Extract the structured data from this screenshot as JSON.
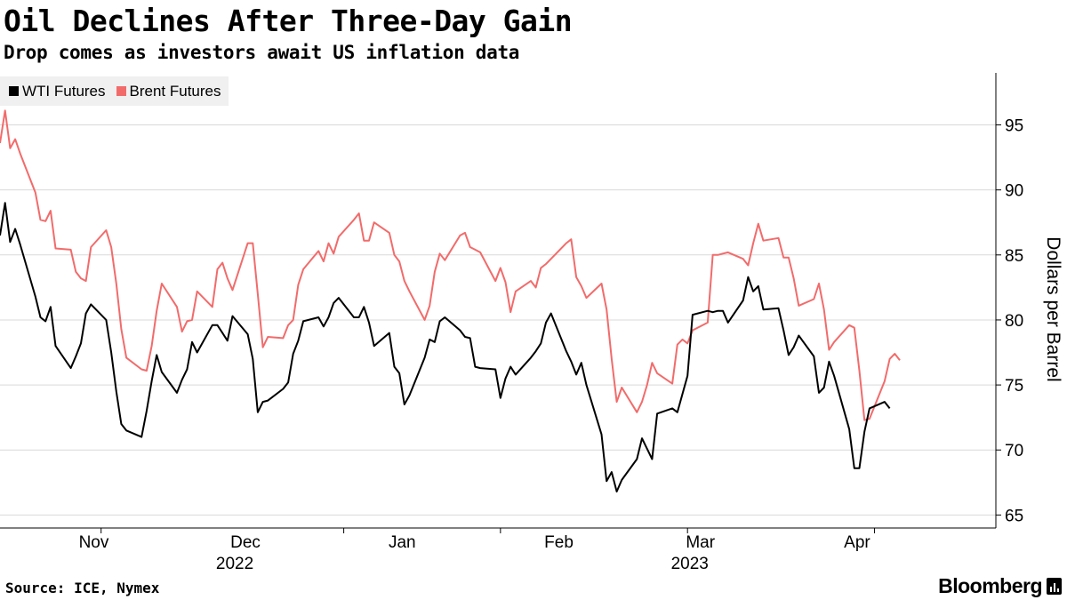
{
  "header": {
    "title": "Oil Declines After Three-Day Gain",
    "subtitle": "Drop comes as investors await US inflation data"
  },
  "footer": {
    "source": "Source: ICE, Nymex",
    "brand": "Bloomberg"
  },
  "colors": {
    "wti": "#000000",
    "brent": "#f26b6b",
    "grid": "#d9d9d9",
    "axis": "#000000"
  },
  "chart_data": {
    "type": "line",
    "title": "Oil Declines After Three-Day Gain",
    "subtitle": "Drop comes as investors await US inflation data",
    "ylabel": "Dollars per Barrel",
    "xlabel": "",
    "ylim": [
      64,
      99
    ],
    "yticks": [
      65,
      70,
      75,
      80,
      85,
      90,
      95
    ],
    "y_axis_side": "right",
    "grid": "horizontal",
    "legend": "top-left",
    "x_start": "2022-10-24",
    "x_end": "2023-05-09",
    "x_ticks": [
      {
        "date": "2022-11-01",
        "label": "Nov",
        "sublabel": ""
      },
      {
        "date": "2022-12-01",
        "label": "Dec",
        "sublabel": "2022"
      },
      {
        "date": "2023-01-01",
        "label": "Jan",
        "sublabel": ""
      },
      {
        "date": "2023-02-01",
        "label": "Feb",
        "sublabel": ""
      },
      {
        "date": "2023-03-01",
        "label": "Mar",
        "sublabel": "2023"
      },
      {
        "date": "2023-04-01",
        "label": "Apr",
        "sublabel": ""
      }
    ],
    "year_dividers": [
      "2022-11-13",
      "2022-12-31",
      "2023-01-31",
      "2023-03-09",
      "2023-04-15"
    ],
    "series": [
      {
        "name": "WTI Futures",
        "color": "#000000",
        "points": [
          [
            "2022-10-24",
            86.5
          ],
          [
            "2022-10-25",
            89.0
          ],
          [
            "2022-10-26",
            86.0
          ],
          [
            "2022-10-27",
            87.0
          ],
          [
            "2022-10-28",
            85.8
          ],
          [
            "2022-10-31",
            81.8
          ],
          [
            "2022-11-01",
            80.2
          ],
          [
            "2022-11-02",
            79.9
          ],
          [
            "2022-11-03",
            81.0
          ],
          [
            "2022-11-04",
            78.0
          ],
          [
            "2022-11-07",
            76.3
          ],
          [
            "2022-11-08",
            77.2
          ],
          [
            "2022-11-09",
            78.2
          ],
          [
            "2022-11-10",
            80.5
          ],
          [
            "2022-11-11",
            81.2
          ],
          [
            "2022-11-14",
            80.0
          ],
          [
            "2022-11-15",
            77.5
          ],
          [
            "2022-11-16",
            74.5
          ],
          [
            "2022-11-17",
            72.0
          ],
          [
            "2022-11-18",
            71.5
          ],
          [
            "2022-11-21",
            71.0
          ],
          [
            "2022-11-22",
            73.0
          ],
          [
            "2022-11-23",
            75.3
          ],
          [
            "2022-11-24",
            77.3
          ],
          [
            "2022-11-25",
            76.0
          ],
          [
            "2022-11-28",
            74.4
          ],
          [
            "2022-11-29",
            75.4
          ],
          [
            "2022-11-30",
            76.2
          ],
          [
            "2022-12-01",
            78.3
          ],
          [
            "2022-12-02",
            77.5
          ],
          [
            "2022-12-05",
            79.6
          ],
          [
            "2022-12-06",
            79.6
          ],
          [
            "2022-12-07",
            79.0
          ],
          [
            "2022-12-08",
            78.4
          ],
          [
            "2022-12-09",
            80.3
          ],
          [
            "2022-12-12",
            78.9
          ],
          [
            "2022-12-13",
            77.0
          ],
          [
            "2022-12-14",
            72.9
          ],
          [
            "2022-12-15",
            73.7
          ],
          [
            "2022-12-16",
            73.8
          ],
          [
            "2022-12-19",
            74.7
          ],
          [
            "2022-12-20",
            75.2
          ],
          [
            "2022-12-21",
            77.4
          ],
          [
            "2022-12-22",
            78.4
          ],
          [
            "2022-12-23",
            79.9
          ],
          [
            "2022-12-26",
            80.2
          ],
          [
            "2022-12-27",
            79.5
          ],
          [
            "2022-12-28",
            80.2
          ],
          [
            "2022-12-29",
            81.3
          ],
          [
            "2022-12-30",
            81.7
          ],
          [
            "2023-01-02",
            80.2
          ],
          [
            "2023-01-03",
            80.2
          ],
          [
            "2023-01-04",
            81.0
          ],
          [
            "2023-01-05",
            79.8
          ],
          [
            "2023-01-06",
            78.0
          ],
          [
            "2023-01-09",
            79.0
          ],
          [
            "2023-01-10",
            76.4
          ],
          [
            "2023-01-11",
            75.9
          ],
          [
            "2023-01-12",
            73.5
          ],
          [
            "2023-01-13",
            74.2
          ],
          [
            "2023-01-16",
            77.1
          ],
          [
            "2023-01-17",
            78.5
          ],
          [
            "2023-01-18",
            78.3
          ],
          [
            "2023-01-19",
            79.9
          ],
          [
            "2023-01-20",
            80.2
          ],
          [
            "2023-01-23",
            79.2
          ],
          [
            "2023-01-24",
            78.7
          ],
          [
            "2023-01-25",
            78.6
          ],
          [
            "2023-01-26",
            76.4
          ],
          [
            "2023-01-27",
            76.3
          ],
          [
            "2023-01-30",
            76.2
          ],
          [
            "2023-01-31",
            74.0
          ],
          [
            "2023-02-01",
            75.5
          ],
          [
            "2023-02-02",
            76.4
          ],
          [
            "2023-02-03",
            75.8
          ],
          [
            "2023-02-06",
            77.1
          ],
          [
            "2023-02-07",
            77.6
          ],
          [
            "2023-02-08",
            78.2
          ],
          [
            "2023-02-09",
            79.8
          ],
          [
            "2023-02-10",
            80.5
          ],
          [
            "2023-02-13",
            77.6
          ],
          [
            "2023-02-14",
            76.8
          ],
          [
            "2023-02-15",
            75.8
          ],
          [
            "2023-02-16",
            76.7
          ],
          [
            "2023-02-17",
            75.0
          ],
          [
            "2023-02-20",
            71.2
          ],
          [
            "2023-02-21",
            67.6
          ],
          [
            "2023-02-22",
            68.3
          ],
          [
            "2023-02-23",
            66.8
          ],
          [
            "2023-02-24",
            67.7
          ],
          [
            "2023-02-27",
            69.3
          ],
          [
            "2023-02-28",
            70.9
          ],
          [
            "2023-03-01",
            70.1
          ],
          [
            "2023-03-02",
            69.3
          ],
          [
            "2023-03-03",
            72.8
          ],
          [
            "2023-03-06",
            73.2
          ],
          [
            "2023-03-07",
            72.9
          ],
          [
            "2023-03-08",
            74.3
          ],
          [
            "2023-03-09",
            75.7
          ],
          [
            "2023-03-10",
            80.4
          ],
          [
            "2023-03-13",
            80.7
          ],
          [
            "2023-03-14",
            80.6
          ],
          [
            "2023-03-15",
            80.7
          ],
          [
            "2023-03-16",
            80.7
          ],
          [
            "2023-03-17",
            79.8
          ],
          [
            "2023-03-20",
            81.5
          ],
          [
            "2023-03-21",
            83.3
          ],
          [
            "2023-03-22",
            82.2
          ],
          [
            "2023-03-23",
            82.6
          ],
          [
            "2023-03-24",
            80.8
          ],
          [
            "2023-03-27",
            80.9
          ],
          [
            "2023-03-28",
            79.2
          ],
          [
            "2023-03-29",
            77.3
          ],
          [
            "2023-03-30",
            77.9
          ],
          [
            "2023-03-31",
            78.8
          ],
          [
            "2023-04-03",
            77.2
          ],
          [
            "2023-04-04",
            74.4
          ],
          [
            "2023-04-05",
            74.8
          ],
          [
            "2023-04-06",
            76.8
          ],
          [
            "2023-04-07",
            75.7
          ],
          [
            "2023-04-10",
            71.6
          ],
          [
            "2023-04-11",
            68.6
          ],
          [
            "2023-04-12",
            68.6
          ],
          [
            "2023-04-13",
            71.4
          ],
          [
            "2023-04-14",
            73.2
          ],
          [
            "2023-04-17",
            73.7
          ],
          [
            "2023-04-18",
            73.2
          ]
        ]
      },
      {
        "name": "Brent Futures",
        "color": "#f26b6b",
        "points": [
          [
            "2022-10-24",
            93.6
          ],
          [
            "2022-10-25",
            96.1
          ],
          [
            "2022-10-26",
            93.2
          ],
          [
            "2022-10-27",
            93.9
          ],
          [
            "2022-10-28",
            92.8
          ],
          [
            "2022-10-31",
            89.8
          ],
          [
            "2022-11-01",
            87.7
          ],
          [
            "2022-11-02",
            87.6
          ],
          [
            "2022-11-03",
            88.4
          ],
          [
            "2022-11-04",
            85.5
          ],
          [
            "2022-11-07",
            85.4
          ],
          [
            "2022-11-08",
            83.7
          ],
          [
            "2022-11-09",
            83.2
          ],
          [
            "2022-11-10",
            83.0
          ],
          [
            "2022-11-11",
            85.6
          ],
          [
            "2022-11-14",
            86.9
          ],
          [
            "2022-11-15",
            85.6
          ],
          [
            "2022-11-16",
            82.8
          ],
          [
            "2022-11-17",
            79.3
          ],
          [
            "2022-11-18",
            77.1
          ],
          [
            "2022-11-21",
            76.2
          ],
          [
            "2022-11-22",
            76.1
          ],
          [
            "2022-11-23",
            78.0
          ],
          [
            "2022-11-24",
            80.7
          ],
          [
            "2022-11-25",
            82.8
          ],
          [
            "2022-11-28",
            81.0
          ],
          [
            "2022-11-29",
            79.1
          ],
          [
            "2022-11-30",
            79.9
          ],
          [
            "2022-12-01",
            80.0
          ],
          [
            "2022-12-02",
            82.2
          ],
          [
            "2022-12-05",
            81.0
          ],
          [
            "2022-12-06",
            83.9
          ],
          [
            "2022-12-07",
            84.4
          ],
          [
            "2022-12-08",
            83.2
          ],
          [
            "2022-12-09",
            82.3
          ],
          [
            "2022-12-12",
            85.9
          ],
          [
            "2022-12-13",
            85.9
          ],
          [
            "2022-12-14",
            82.0
          ],
          [
            "2022-12-15",
            77.9
          ],
          [
            "2022-12-16",
            78.7
          ],
          [
            "2022-12-19",
            78.6
          ],
          [
            "2022-12-20",
            79.6
          ],
          [
            "2022-12-21",
            80.0
          ],
          [
            "2022-12-22",
            82.7
          ],
          [
            "2022-12-23",
            83.9
          ],
          [
            "2022-12-26",
            85.3
          ],
          [
            "2022-12-27",
            84.5
          ],
          [
            "2022-12-28",
            85.9
          ],
          [
            "2022-12-29",
            85.1
          ],
          [
            "2022-12-30",
            86.4
          ],
          [
            "2023-01-02",
            87.7
          ],
          [
            "2023-01-03",
            88.2
          ],
          [
            "2023-01-04",
            86.1
          ],
          [
            "2023-01-05",
            86.1
          ],
          [
            "2023-01-06",
            87.5
          ],
          [
            "2023-01-09",
            86.7
          ],
          [
            "2023-01-10",
            85.0
          ],
          [
            "2023-01-11",
            84.5
          ],
          [
            "2023-01-12",
            83.0
          ],
          [
            "2023-01-13",
            82.2
          ],
          [
            "2023-01-16",
            80.0
          ],
          [
            "2023-01-17",
            81.1
          ],
          [
            "2023-01-18",
            83.7
          ],
          [
            "2023-01-19",
            85.1
          ],
          [
            "2023-01-20",
            84.6
          ],
          [
            "2023-01-23",
            86.5
          ],
          [
            "2023-01-24",
            86.7
          ],
          [
            "2023-01-25",
            85.6
          ],
          [
            "2023-01-26",
            85.4
          ],
          [
            "2023-01-27",
            85.2
          ],
          [
            "2023-01-30",
            83.0
          ],
          [
            "2023-01-31",
            84.0
          ],
          [
            "2023-02-01",
            82.9
          ],
          [
            "2023-02-02",
            80.6
          ],
          [
            "2023-02-03",
            82.2
          ],
          [
            "2023-02-06",
            83.0
          ],
          [
            "2023-02-07",
            82.5
          ],
          [
            "2023-02-08",
            84.0
          ],
          [
            "2023-02-09",
            84.3
          ],
          [
            "2023-02-10",
            84.7
          ],
          [
            "2023-02-13",
            85.9
          ],
          [
            "2023-02-14",
            86.2
          ],
          [
            "2023-02-15",
            83.3
          ],
          [
            "2023-02-16",
            82.6
          ],
          [
            "2023-02-17",
            81.7
          ],
          [
            "2023-02-20",
            82.8
          ],
          [
            "2023-02-21",
            80.8
          ],
          [
            "2023-02-22",
            77.0
          ],
          [
            "2023-02-23",
            73.7
          ],
          [
            "2023-02-24",
            74.8
          ],
          [
            "2023-02-27",
            72.9
          ],
          [
            "2023-02-28",
            73.7
          ],
          [
            "2023-03-01",
            75.0
          ],
          [
            "2023-03-02",
            76.7
          ],
          [
            "2023-03-03",
            75.9
          ],
          [
            "2023-03-06",
            75.1
          ],
          [
            "2023-03-07",
            78.1
          ],
          [
            "2023-03-08",
            78.5
          ],
          [
            "2023-03-09",
            78.2
          ],
          [
            "2023-03-10",
            79.2
          ],
          [
            "2023-03-13",
            79.8
          ],
          [
            "2023-03-14",
            85.0
          ],
          [
            "2023-03-15",
            85.0
          ],
          [
            "2023-03-16",
            85.1
          ],
          [
            "2023-03-17",
            85.2
          ],
          [
            "2023-03-20",
            84.7
          ],
          [
            "2023-03-21",
            84.2
          ],
          [
            "2023-03-22",
            85.9
          ],
          [
            "2023-03-23",
            87.4
          ],
          [
            "2023-03-24",
            86.1
          ],
          [
            "2023-03-27",
            86.3
          ],
          [
            "2023-03-28",
            84.8
          ],
          [
            "2023-03-29",
            84.8
          ],
          [
            "2023-03-30",
            83.2
          ],
          [
            "2023-03-31",
            81.1
          ],
          [
            "2023-04-03",
            81.6
          ],
          [
            "2023-04-04",
            82.8
          ],
          [
            "2023-04-05",
            80.8
          ],
          [
            "2023-04-06",
            77.7
          ],
          [
            "2023-04-07",
            78.3
          ],
          [
            "2023-04-10",
            79.6
          ],
          [
            "2023-04-11",
            79.4
          ],
          [
            "2023-04-12",
            76.1
          ],
          [
            "2023-04-13",
            72.3
          ],
          [
            "2023-04-14",
            72.4
          ],
          [
            "2023-04-17",
            75.3
          ],
          [
            "2023-04-18",
            77.0
          ],
          [
            "2023-04-19",
            77.4
          ],
          [
            "2023-04-20",
            76.9
          ]
        ]
      }
    ]
  }
}
